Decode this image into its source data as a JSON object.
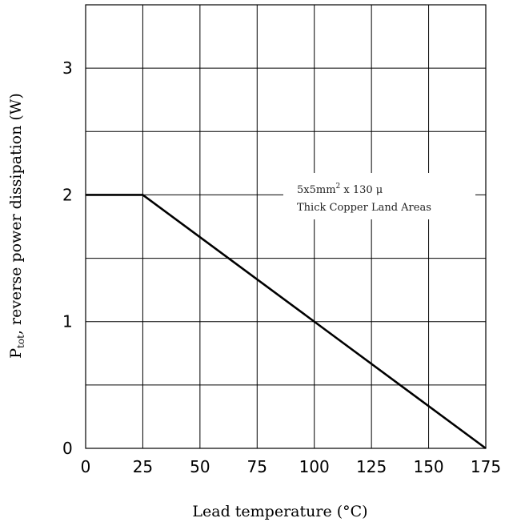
{
  "chart_data": {
    "type": "line",
    "title": "",
    "xlabel": "Lead temperature (°C)",
    "ylabel_main": "P",
    "ylabel_sub": "tot",
    "ylabel_rest": ", reverse power dissipation (W)",
    "xlim": [
      0,
      175
    ],
    "ylim": [
      0,
      3.5
    ],
    "grid": true,
    "x_ticks": [
      0,
      25,
      50,
      75,
      100,
      125,
      150,
      175
    ],
    "x_tick_labels": [
      "0",
      "25",
      "50",
      "75",
      "100",
      "125",
      "150",
      "175"
    ],
    "y_ticks": [
      0,
      1,
      2,
      3
    ],
    "y_tick_labels": [
      "0",
      "1",
      "2",
      "3"
    ],
    "y_gridlines": [
      0,
      0.5,
      1,
      1.5,
      2,
      2.5,
      3,
      3.5
    ],
    "series": [
      {
        "x": [
          0,
          25,
          175
        ],
        "y": [
          2,
          2,
          0
        ]
      }
    ],
    "annotation": {
      "line1_main": "5x5mm",
      "line1_sup": "2",
      "line1_rest": " x 130 μ",
      "line2": "Thick Copper Land Areas"
    }
  }
}
